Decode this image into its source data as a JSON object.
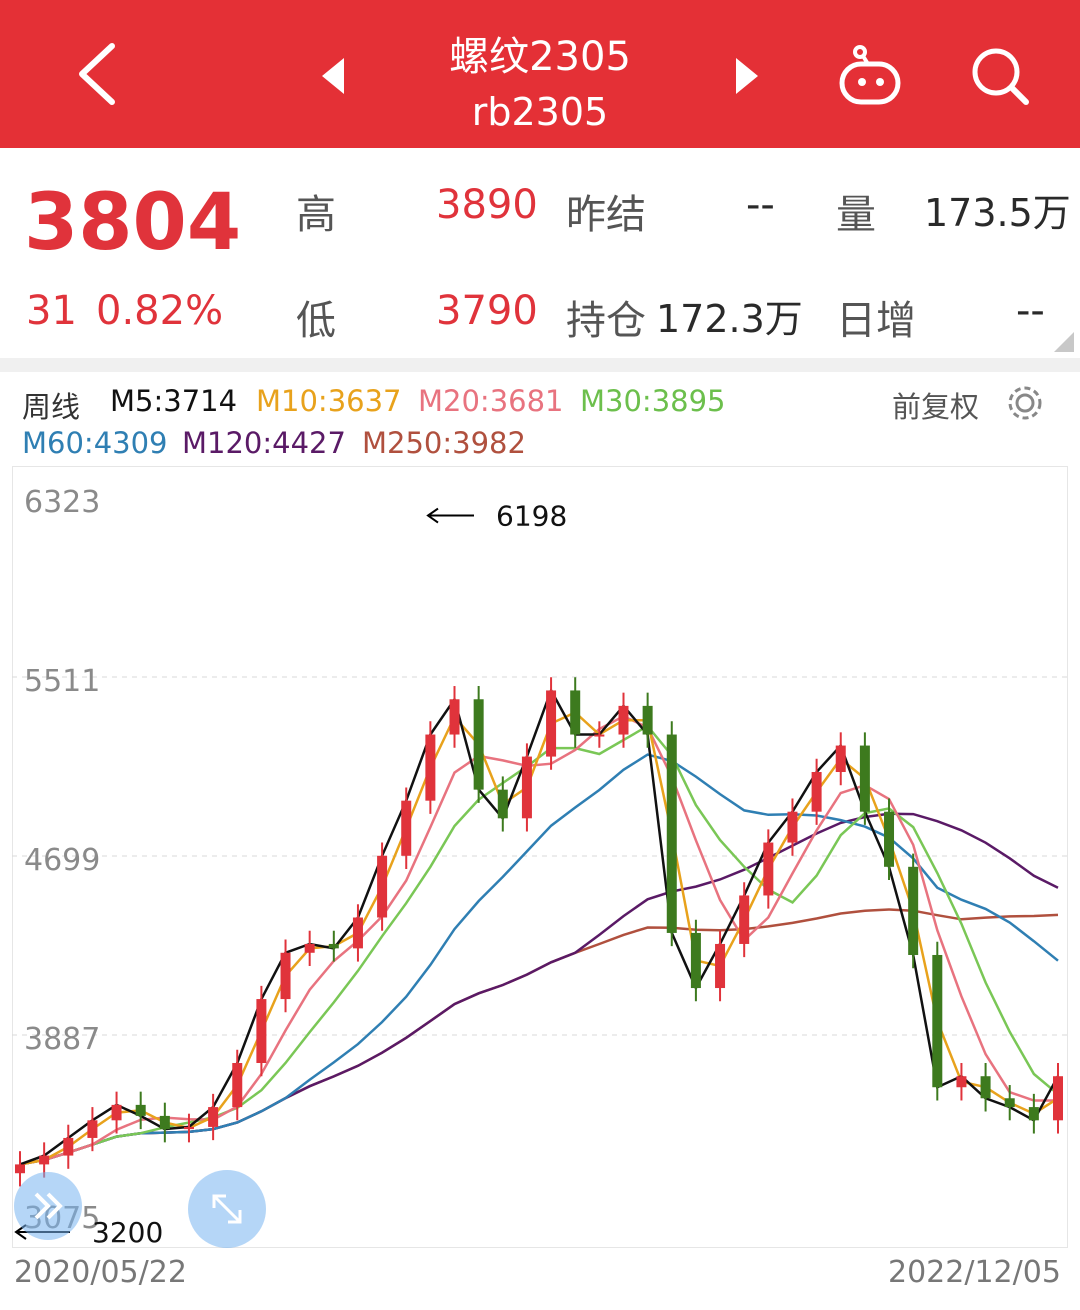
{
  "header": {
    "title": "螺纹2305",
    "subtitle": "rb2305",
    "icons": [
      "back-arrow-icon",
      "prev-triangle-icon",
      "next-triangle-icon",
      "robot-icon",
      "search-icon"
    ]
  },
  "quote": {
    "price": "3804",
    "change": "31",
    "change_pct": "0.82%",
    "high_label": "高",
    "high_value": "3890",
    "low_label": "低",
    "low_value": "3790",
    "prev_settle_label": "昨结",
    "prev_settle_value": "--",
    "open_interest_label": "持仓",
    "open_interest_value": "172.3万",
    "volume_label": "量",
    "volume_value": "173.5万",
    "daily_inc_label": "日增",
    "daily_inc_value": "--"
  },
  "indicators": {
    "period": "周线",
    "ma5": "M5:3714",
    "ma10": "M10:3637",
    "ma20": "M20:3681",
    "ma30": "M30:3895",
    "ma60": "M60:4309",
    "ma120": "M120:4427",
    "ma250": "M250:3982",
    "adjust_label": "前复权"
  },
  "colors": {
    "header_bg": "#e43036",
    "up": "#e0333b",
    "down": "#3d7a1e",
    "ma5": "#111111",
    "ma10": "#e8a21c",
    "ma20": "#e8737f",
    "ma30": "#7ac756",
    "ma60": "#2f7fb3",
    "ma120": "#5a1a66",
    "ma250": "#b0503e"
  },
  "chart_data": {
    "type": "candlestick",
    "yticks": [
      "6323",
      "5511",
      "4699",
      "3887",
      "3075"
    ],
    "ylim": [
      3075,
      6323
    ],
    "max_label": "6198",
    "min_label": "3200",
    "x_start": "2020/05/22",
    "x_end": "2022/12/05",
    "candles_sampled_close": [
      3300,
      3340,
      3420,
      3500,
      3570,
      3520,
      3460,
      3470,
      3560,
      3760,
      4050,
      4260,
      4300,
      4280,
      4420,
      4700,
      4950,
      5250,
      5410,
      5000,
      4870,
      5150,
      5450,
      5250,
      5250,
      5380,
      5250,
      4350,
      4100,
      4300,
      4520,
      4760,
      4900,
      5080,
      5200,
      4900,
      4650,
      4250,
      3650,
      3700,
      3600,
      3560,
      3500,
      3700
    ]
  },
  "footer": {
    "start_date": "2020/05/22",
    "end_date": "2022/12/05"
  }
}
